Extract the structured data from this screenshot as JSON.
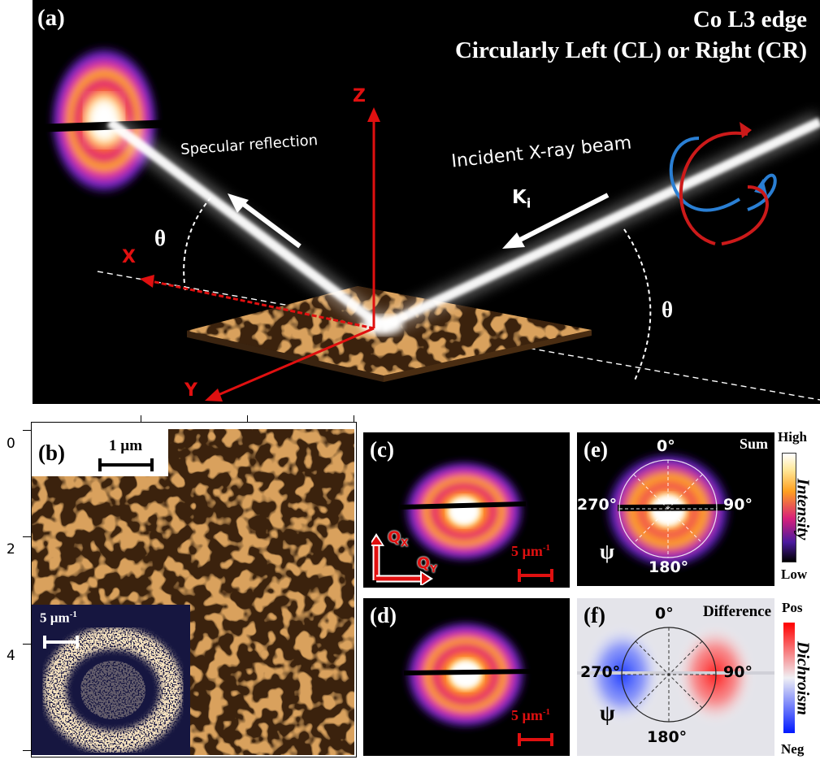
{
  "panel_a": {
    "label": "(a)",
    "title_line1": "Co L3 edge",
    "title_line2": "Circularly Left (CL) or Right (CR)",
    "specular_label": "Specular reflection",
    "incident_label": "Incident X-ray beam",
    "k_label": "K",
    "k_sub": "i",
    "theta_left": "θ",
    "theta_right": "θ",
    "axis_x": "X",
    "axis_y": "Y",
    "axis_z": "Z"
  },
  "panel_b": {
    "label": "(b)",
    "scalebar_label": "1 µm",
    "inset_scalebar_label": "5 µm",
    "inset_scalebar_sup": "-1",
    "y_ticks": [
      "0",
      "2",
      "4"
    ]
  },
  "panel_c": {
    "label": "(c)",
    "qx": "Q",
    "qx_sub": "X",
    "qy": "Q",
    "qy_sub": "Y",
    "scalebar_label": "5 µm",
    "scalebar_sup": "-1"
  },
  "panel_d": {
    "label": "(d)",
    "scalebar_label": "5 µm",
    "scalebar_sup": "-1"
  },
  "panel_e": {
    "label": "(e)",
    "mode": "Sum",
    "angle_0": "0°",
    "angle_90": "90°",
    "angle_180": "180°",
    "angle_270": "270°",
    "psi": "ψ",
    "colorbar_top": "High",
    "colorbar_bottom": "Low",
    "colorbar_title": "Intensity"
  },
  "panel_f": {
    "label": "(f)",
    "mode": "Difference",
    "angle_0": "0°",
    "angle_90": "90°",
    "angle_180": "180°",
    "angle_270": "270°",
    "psi": "ψ",
    "colorbar_top": "Pos",
    "colorbar_bottom": "Neg",
    "colorbar_title": "Dichroism"
  },
  "colors": {
    "axis_red": "#e01010",
    "helix_red": "#cc1a1a",
    "helix_blue": "#2a7fd4",
    "texture_light": "#d9a15d",
    "texture_dark": "#3a200c"
  }
}
